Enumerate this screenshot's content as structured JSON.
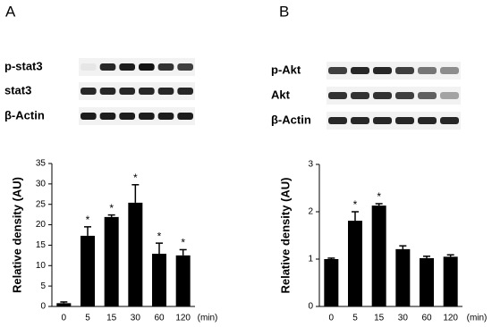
{
  "panels": [
    {
      "label": "A",
      "blots": [
        "p-stat3",
        "stat3",
        "β-Actin"
      ]
    },
    {
      "label": "B",
      "blots": [
        "p-Akt",
        "Akt",
        "β-Actin"
      ]
    }
  ],
  "chart_data": [
    {
      "type": "bar",
      "ylabel": "Relative density (AU)",
      "xlabel": "(min)",
      "categories": [
        "0",
        "5",
        "15",
        "30",
        "60",
        "120"
      ],
      "values": [
        0.8,
        17.3,
        21.9,
        25.4,
        12.9,
        12.5
      ],
      "errors": [
        0.3,
        2.2,
        0.5,
        4.4,
        2.6,
        1.4
      ],
      "annotations": [
        null,
        "*",
        "*",
        "*",
        "*",
        "*"
      ],
      "color": "#000000",
      "ylim": [
        0,
        35
      ],
      "yticks": [
        0,
        5,
        10,
        15,
        20,
        25,
        30,
        35
      ]
    },
    {
      "type": "bar",
      "ylabel": "Relative density (AU)",
      "xlabel": "(min)",
      "categories": [
        "0",
        "5",
        "15",
        "30",
        "60",
        "120"
      ],
      "values": [
        1.0,
        1.81,
        2.13,
        1.21,
        1.02,
        1.05
      ],
      "errors": [
        0.02,
        0.19,
        0.04,
        0.07,
        0.04,
        0.04
      ],
      "annotations": [
        null,
        "*",
        "*",
        null,
        null,
        null
      ],
      "color": "#000000",
      "ylim": [
        0,
        3
      ],
      "yticks": [
        0,
        1,
        2,
        3
      ]
    }
  ]
}
